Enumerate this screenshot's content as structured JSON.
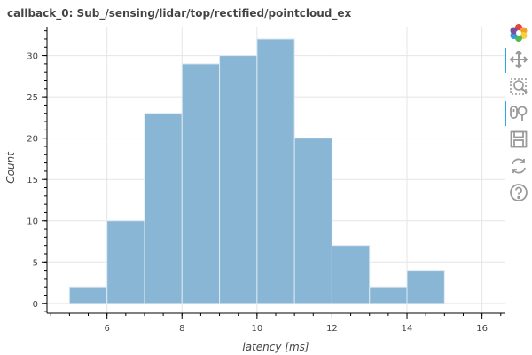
{
  "chart_data": {
    "type": "histogram",
    "title": "callback_0: Sub_/sensing/lidar/top/rectified/pointcloud_ex",
    "xlabel": "latency [ms]",
    "ylabel": "Count",
    "xlim": [
      4.4,
      16.6
    ],
    "ylim": [
      -1.2,
      33.5
    ],
    "x_ticks": [
      6,
      8,
      10,
      12,
      14,
      16
    ],
    "y_ticks": [
      0,
      5,
      10,
      15,
      20,
      25,
      30
    ],
    "bin_edges": [
      5,
      6,
      7,
      8,
      9,
      10,
      11,
      12,
      13,
      14,
      15
    ],
    "values": [
      2,
      10,
      23,
      29,
      30,
      32,
      20,
      7,
      2,
      4
    ],
    "grid": true,
    "legend": "none",
    "bar_color": "#8ab6d6",
    "bar_edge_color": "#dbe8f2"
  },
  "toolbar": {
    "logo_icon": "bokeh-logo-icon",
    "tools": [
      "pan-icon",
      "box-zoom-icon",
      "wheel-zoom-icon",
      "save-icon",
      "reset-icon",
      "help-icon"
    ]
  }
}
